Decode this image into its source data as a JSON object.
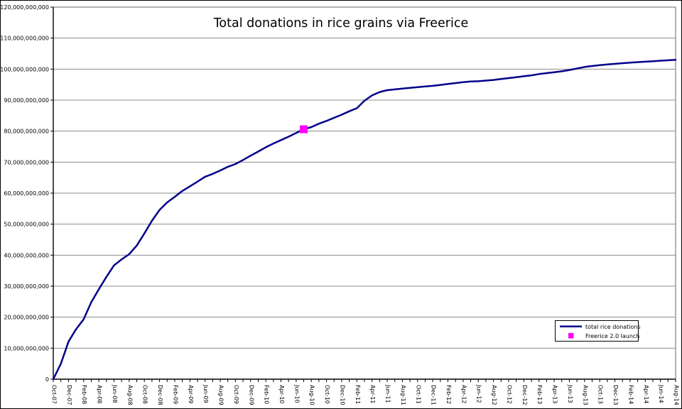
{
  "chart_data": {
    "type": "line",
    "title": "Total donations in rice grains via Freerice",
    "background": "#FFFFFF",
    "grid": "horizontal-only",
    "gridline_color": "#8c8c8c",
    "x_axis": {
      "label_every_months": 2,
      "minor_tick_every_months": 1,
      "tick_labels": [
        "Oct-07",
        "Dec-07",
        "Feb-08",
        "Apr-08",
        "Jun-08",
        "Aug-08",
        "Oct-08",
        "Dec-08",
        "Feb-09",
        "Apr-09",
        "Jun-09",
        "Aug-09",
        "Oct-09",
        "Dec-09",
        "Feb-10",
        "Apr-10",
        "Jun-10",
        "Aug-10",
        "Oct-10",
        "Dec-10",
        "Feb-11",
        "Apr-11",
        "Jun-11",
        "Aug-11",
        "Oct-11",
        "Dec-11",
        "Feb-12",
        "Apr-12",
        "Jun-12",
        "Aug-12",
        "Oct-12",
        "Dec-12",
        "Feb-13",
        "Apr-13",
        "Jun-13",
        "Aug-13",
        "Oct-13",
        "Dec-13",
        "Feb-14",
        "Apr-14",
        "Jun-14",
        "Aug-14"
      ]
    },
    "y_axis": {
      "ylim_billions": [
        0,
        120
      ],
      "gridline_step_billions": 10,
      "tick_labels": [
        "0",
        "10,000,000,000",
        "20,000,000,000",
        "30,000,000,000",
        "40,000,000,000",
        "50,000,000,000",
        "60,000,000,000",
        "70,000,000,000",
        "80,000,000,000",
        "90,000,000,000",
        "100,000,000,000",
        "110,000,000,000",
        "120,000,000,000"
      ]
    },
    "series": [
      {
        "name": "total rice donations",
        "color": "#00008B",
        "unit": "rice grains (billions)",
        "x_start": "Oct-07",
        "x_end": "Aug-14",
        "x_step_months": 1,
        "values_billions": [
          0,
          5.0,
          12.1,
          16.1,
          19.3,
          24.8,
          29.0,
          33.0,
          36.7,
          38.6,
          40.3,
          43.1,
          47.0,
          51.1,
          54.6,
          57.0,
          58.8,
          60.7,
          62.2,
          63.7,
          65.3,
          66.2,
          67.3,
          68.5,
          69.4,
          70.7,
          72.1,
          73.4,
          74.8,
          76.0,
          77.1,
          78.2,
          79.4,
          80.6,
          81.3,
          82.4,
          83.3,
          84.3,
          85.3,
          86.4,
          87.4,
          89.8,
          91.5,
          92.6,
          93.2,
          93.45,
          93.7,
          93.95,
          94.2,
          94.4,
          94.6,
          94.9,
          95.2,
          95.5,
          95.8,
          96.0,
          96.1,
          96.3,
          96.5,
          96.8,
          97.1,
          97.4,
          97.7,
          98.0,
          98.4,
          98.7,
          99.0,
          99.3,
          99.7,
          100.2,
          100.7,
          101.0,
          101.3,
          101.5,
          101.7,
          101.9,
          102.1,
          102.25,
          102.4,
          102.55,
          102.7,
          102.85,
          103.0
        ]
      }
    ],
    "event_marker": {
      "name": "Freerice 2.0 launch",
      "color": "#FF00FF",
      "month": "Jul-10",
      "month_index": 33,
      "value_billions": 80.6
    },
    "legend": {
      "position": "bottom-right",
      "entries": [
        "total rice donations",
        "Freerice 2.0 launch"
      ]
    }
  }
}
